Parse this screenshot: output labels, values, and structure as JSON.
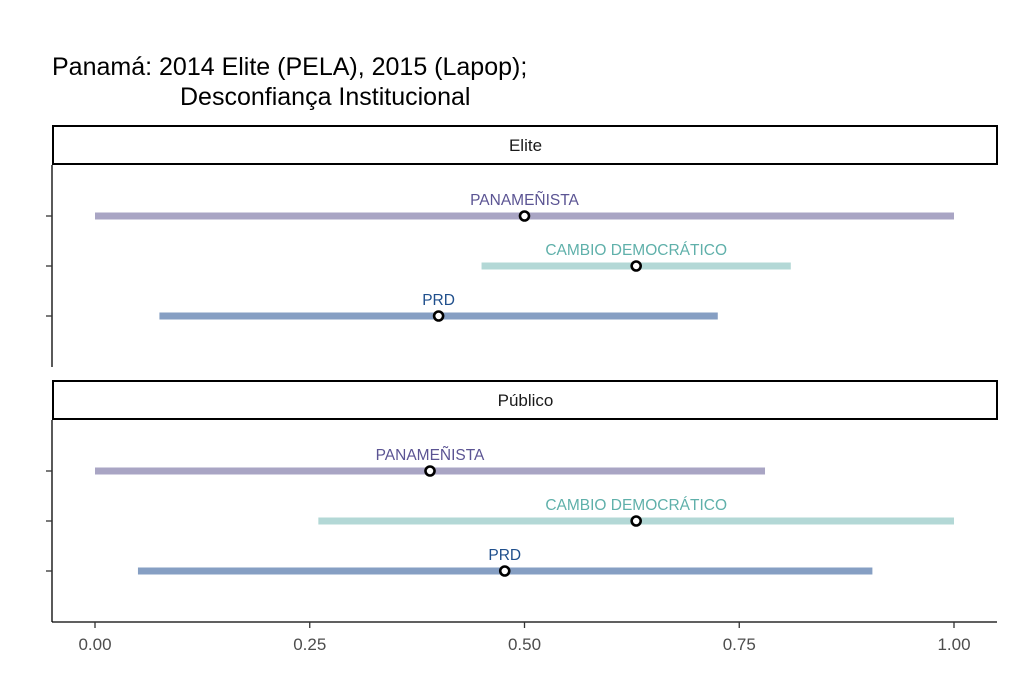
{
  "title_line1": "Panamá: 2014 Elite (PELA), 2015 (Lapop);",
  "title_line2": "Desconfiança Institucional",
  "colors": {
    "panamenista": "#a9a5c4",
    "panamenista_label": "#5b5493",
    "cambio": "#b3d8d6",
    "cambio_label": "#5fb0aa",
    "prd": "#869fc3",
    "prd_label": "#1f4f8c"
  },
  "chart_data": {
    "type": "interval",
    "xlim": [
      -0.05,
      1.05
    ],
    "x_ticks": [
      0.0,
      0.25,
      0.5,
      0.75,
      1.0
    ],
    "x_tick_labels": [
      "0.00",
      "0.25",
      "0.50",
      "0.75",
      "1.00"
    ],
    "panels": [
      {
        "name": "Elite",
        "parties": [
          {
            "label": "PANAMEÑISTA",
            "low": 0.0,
            "high": 1.0,
            "mean": 0.5,
            "color_key": "panamenista"
          },
          {
            "label": "CAMBIO DEMOCRÁTICO",
            "low": 0.45,
            "high": 0.81,
            "mean": 0.63,
            "color_key": "cambio"
          },
          {
            "label": "PRD",
            "low": 0.075,
            "high": 0.725,
            "mean": 0.4,
            "color_key": "prd"
          }
        ]
      },
      {
        "name": "Público",
        "parties": [
          {
            "label": "PANAMEÑISTA",
            "low": 0.0,
            "high": 0.78,
            "mean": 0.39,
            "color_key": "panamenista"
          },
          {
            "label": "CAMBIO DEMOCRÁTICO",
            "low": 0.26,
            "high": 1.0,
            "mean": 0.63,
            "color_key": "cambio"
          },
          {
            "label": "PRD",
            "low": 0.05,
            "high": 0.905,
            "mean": 0.477,
            "color_key": "prd"
          }
        ]
      }
    ]
  }
}
